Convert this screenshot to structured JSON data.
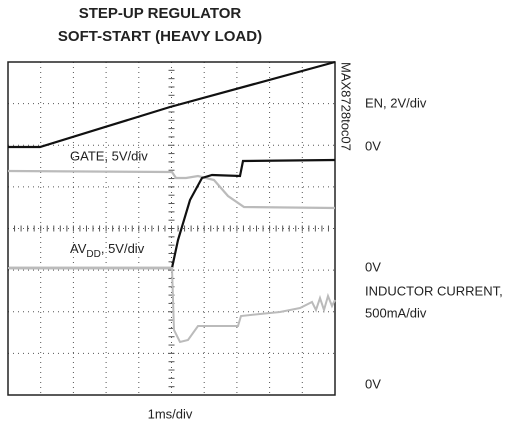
{
  "header": {
    "title_lines": [
      "STEP-UP REGULATOR",
      "SOFT-START (HEAVY LOAD)"
    ]
  },
  "figure_id": "MAX8728toc07",
  "traces": {
    "gate": {
      "label": "GATE, 5V/div"
    },
    "avdd": {
      "label_prefix": "AV",
      "label_subscript": "DD",
      "label_suffix": ", 5V/div"
    }
  },
  "right_labels": {
    "en": "EN, 2V/div",
    "en_zero": "0V",
    "avdd_zero": "0V",
    "inductor": [
      "INDUCTOR CURRENT,",
      "500mA/div"
    ],
    "inductor_zero": "0V"
  },
  "time_scale": "1ms/div"
}
